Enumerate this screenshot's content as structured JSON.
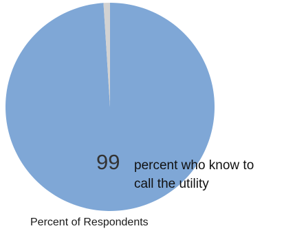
{
  "chart_data": {
    "type": "pie",
    "slices": [
      {
        "label": "percent who know to call the utility",
        "value": 99,
        "color": "#7fa7d6"
      },
      {
        "label": "",
        "value": 1,
        "color": "#d2d2d2"
      }
    ],
    "annotation": {
      "value_text": "99",
      "label_line1": "percent who know to",
      "label_line2": "call the utility"
    },
    "xlabel": "Percent of Respondents"
  }
}
